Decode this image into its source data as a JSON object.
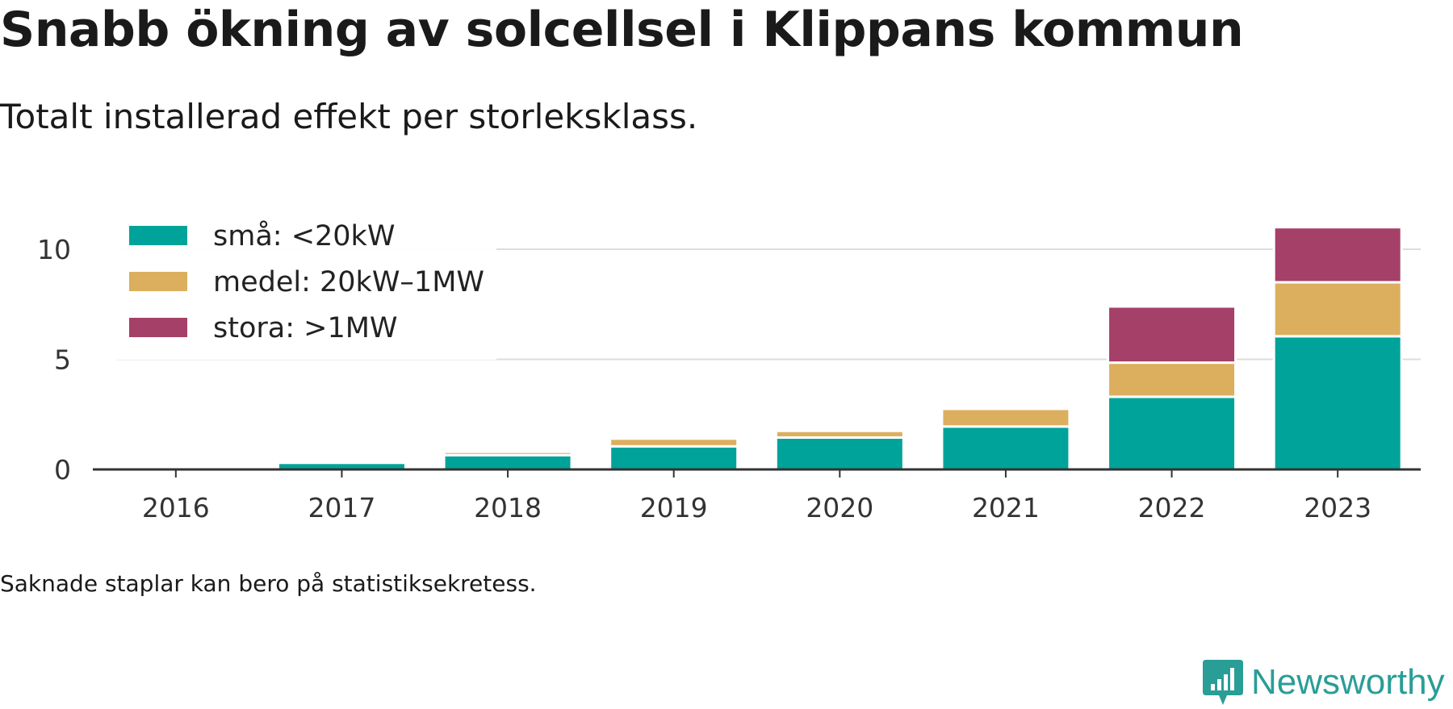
{
  "title": "Snabb ökning av solcellsel i Klippans kommun",
  "subtitle": "Totalt installerad effekt per storleksklass.",
  "footnote": "Saknade staplar kan bero på statistiksekretess.",
  "brand": {
    "name": "Newsworthy",
    "icon": "newsworthy-logo-icon",
    "color": "#2a9d96"
  },
  "chart_data": {
    "type": "bar",
    "stacked": true,
    "categories": [
      "2016",
      "2017",
      "2018",
      "2019",
      "2020",
      "2021",
      "2022",
      "2023"
    ],
    "series": [
      {
        "name": "små: <20kW",
        "color": "#00a39a",
        "values": [
          0,
          0.3,
          0.65,
          1.05,
          1.45,
          1.95,
          3.3,
          6.05
        ]
      },
      {
        "name": "medel: 20kW–1MW",
        "color": "#dcaf5e",
        "values": [
          0,
          0,
          0.15,
          0.35,
          0.3,
          0.8,
          1.55,
          2.45
        ]
      },
      {
        "name": "stora: >1MW",
        "color": "#a54068",
        "values": [
          0,
          0,
          0,
          0,
          0,
          0,
          2.55,
          2.5
        ]
      }
    ],
    "yticks": [
      0,
      5,
      10
    ],
    "ylim": [
      0,
      11.2
    ],
    "grid": true,
    "legend_position": "top-left"
  }
}
